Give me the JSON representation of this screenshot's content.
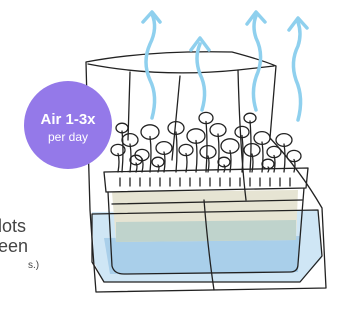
{
  "badge": {
    "title": "Air 1-3x",
    "subtitle": "per day"
  },
  "side_text": {
    "lines": [
      "lots",
      "een",
      "s.)"
    ]
  }
}
